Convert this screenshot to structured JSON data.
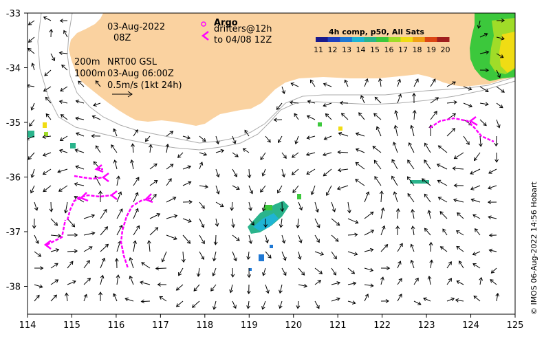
{
  "map": {
    "date_line1": "03-Aug-2022",
    "date_line2": "08Z",
    "argo_label": "Argo",
    "drifters_line1": "drifters@12h",
    "drifters_line2": "to 04/08 12Z",
    "contour_label1": "200m",
    "contour_label2": "1000m",
    "nrt_label": "NRT00 GSL",
    "nrt_time": "03-Aug 06:00Z",
    "scale_label": "0.5m/s (1kt 24h)",
    "credit": "© IMOS 06-Aug-2022 14:56 Hobart"
  },
  "colorbar": {
    "title": "4h comp, p50, All Sats",
    "ticks": [
      "11",
      "12",
      "13",
      "14",
      "15",
      "16",
      "17",
      "18",
      "19",
      "20"
    ],
    "colors": [
      "#1a1a8c",
      "#1f3fbf",
      "#1f78d4",
      "#1fb4d4",
      "#2ab48c",
      "#3cc83c",
      "#a0dc28",
      "#f0dc14",
      "#f0a014",
      "#dc4614",
      "#a01e1e"
    ]
  },
  "axes": {
    "x_ticks": [
      "114",
      "115",
      "116",
      "117",
      "118",
      "119",
      "120",
      "121",
      "122",
      "123",
      "124",
      "125"
    ],
    "y_ticks": [
      "-33",
      "-34",
      "-35",
      "-36",
      "-37",
      "-38"
    ]
  },
  "colors": {
    "land": "#fad2a0",
    "drifter": "#ff00ff",
    "contour": "#aaaaaa"
  }
}
